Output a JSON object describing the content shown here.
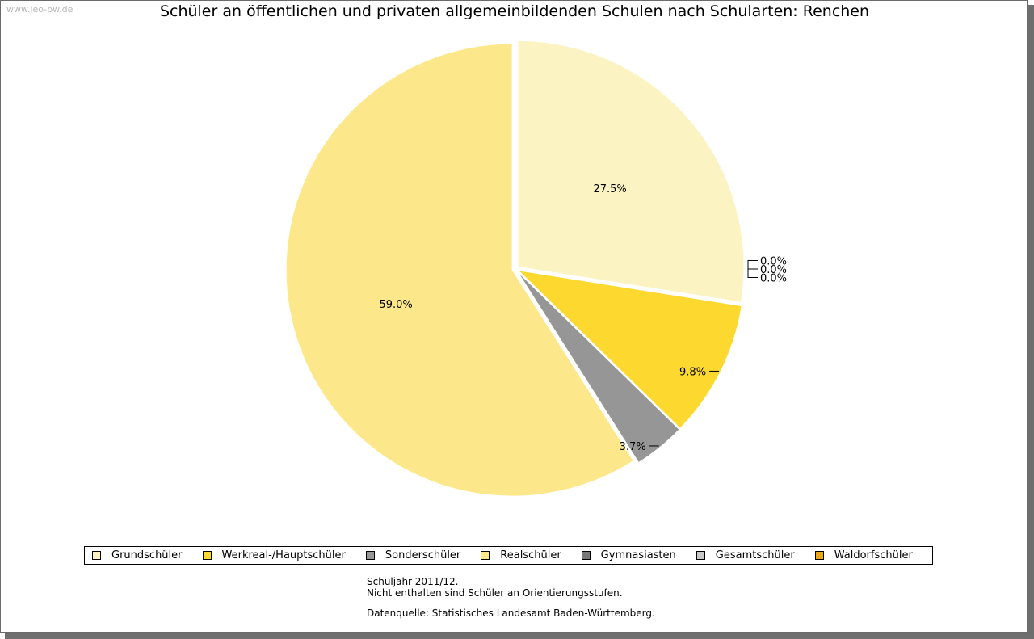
{
  "watermark": "www.leo-bw.de",
  "chart_data": {
    "type": "pie",
    "title": "Schüler an öffentlichen und privaten allgemeinbildenden Schulen nach Schularten: Renchen",
    "slices": [
      {
        "label": "Grundschüler",
        "value": 27.5,
        "value_label": "27.5%",
        "color": "#fcf3c3"
      },
      {
        "label": "Werkreal-/Hauptschüler",
        "value": 9.8,
        "value_label": "9.8%",
        "color": "#fdd82e"
      },
      {
        "label": "Sonderschüler",
        "value": 3.7,
        "value_label": "3.7%",
        "color": "#969696"
      },
      {
        "label": "Realschüler",
        "value": 59.0,
        "value_label": "59.0%",
        "color": "#fce88b"
      },
      {
        "label": "Gymnasiasten",
        "value": 0.0,
        "value_label": "0.0%",
        "color": "#787878"
      },
      {
        "label": "Gesamtschüler",
        "value": 0.0,
        "value_label": "0.0%",
        "color": "#c8c8c8"
      },
      {
        "label": "Waldorfschüler",
        "value": 0.0,
        "value_label": "0.0%",
        "color": "#e8a915"
      }
    ],
    "legend_position": "bottom"
  },
  "notes": {
    "line1": "Schuljahr 2011/12.",
    "line2": "Nicht enthalten sind Schüler an Orientierungsstufen.",
    "source": "Datenquelle: Statistisches Landesamt Baden-Württemberg."
  }
}
